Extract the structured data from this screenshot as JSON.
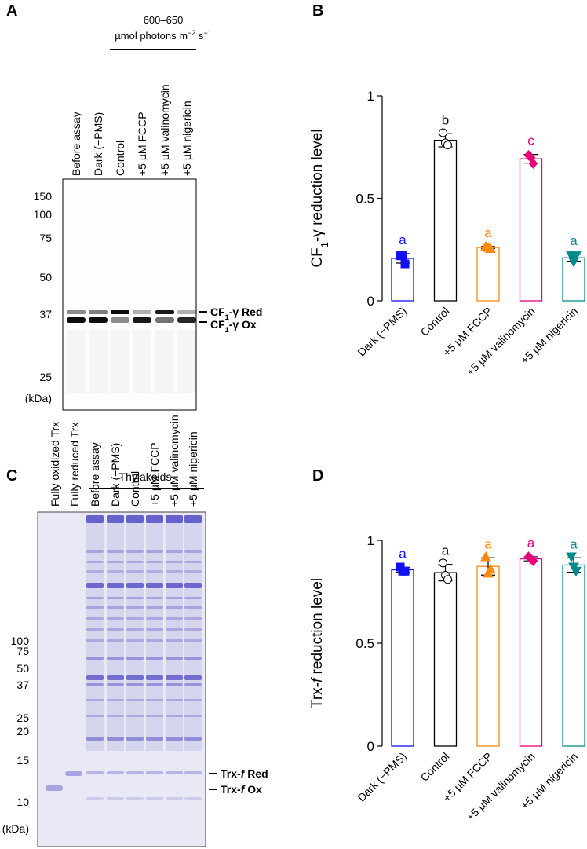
{
  "panel_labels": [
    "A",
    "B",
    "C",
    "D"
  ],
  "gels": [
    {
      "header": [
        "600–650",
        "µmol photons m",
        "−2",
        " s",
        "−1"
      ],
      "lanes": [
        "Before assay",
        "Dark (−PMS)",
        "Control",
        "+5 µM FCCP",
        "+5 µM valinomycin",
        "+5 µM nigericin"
      ],
      "markers": [
        "150",
        "100",
        "75",
        "50",
        "37",
        "25",
        "(kDa)"
      ],
      "bands": [
        [
          "CF",
          "1",
          "-γ Red"
        ],
        [
          "CF",
          "1",
          "-γ Ox"
        ]
      ]
    },
    {
      "header": [
        "Thylakoids"
      ],
      "lanes": [
        "Fully oxidized Trx",
        "Fully reduced Trx",
        "Before assay",
        "Dark (−PMS)",
        "Control",
        "+5 µM FCCP",
        "+5 µM valinomycin",
        "+5 µM nigericin"
      ],
      "markers": [
        "100",
        "75",
        "50",
        "37",
        "25",
        "20",
        "15",
        "10",
        "(kDa)"
      ],
      "bands": [
        [
          "Trx-",
          "f",
          " Red"
        ],
        [
          "Trx-",
          "f",
          " Ox"
        ]
      ]
    }
  ],
  "chart_data": [
    {
      "type": "bar",
      "ylabel": [
        "CF",
        "1",
        "-γ reduction level"
      ],
      "categories": [
        "Dark (−PMS)",
        "Control",
        "+5 µM FCCP",
        "+5 µM valinomycin",
        "+5 µM nigericin"
      ],
      "values": [
        0.207,
        0.783,
        0.26,
        0.693,
        0.21
      ],
      "errors": [
        0.023,
        0.032,
        0.005,
        0.021,
        0.017
      ],
      "points": [
        [
          0.22,
          0.22,
          0.18
        ],
        [
          0.82,
          0.77,
          0.76
        ],
        [
          0.265,
          0.26,
          0.255
        ],
        [
          0.71,
          0.7,
          0.67
        ],
        [
          0.22,
          0.19,
          0.22
        ]
      ],
      "letters": [
        "a",
        "b",
        "a",
        "c",
        "a"
      ],
      "colors": [
        "#1010f0",
        "#000000",
        "#ff8a10",
        "#e8007a",
        "#008b8b"
      ],
      "markers": [
        "square",
        "circle",
        "triangle-up",
        "diamond",
        "triangle-down"
      ],
      "ylim": [
        0,
        1
      ],
      "yticks": [
        0,
        0.5,
        1
      ]
    },
    {
      "type": "bar",
      "ylabel": [
        "Trx-",
        "f",
        " reduction level"
      ],
      "categories": [
        "Dark (−PMS)",
        "Control",
        "+5 µM FCCP",
        "+5 µM valinomycin",
        "+5 µM nigericin"
      ],
      "values": [
        0.857,
        0.843,
        0.873,
        0.91,
        0.88
      ],
      "errors": [
        0.012,
        0.04,
        0.042,
        0.01,
        0.035
      ],
      "points": [
        [
          0.87,
          0.85,
          0.85
        ],
        [
          0.89,
          0.83,
          0.81
        ],
        [
          0.92,
          0.84,
          0.86
        ],
        [
          0.92,
          0.91,
          0.9
        ],
        [
          0.92,
          0.87,
          0.85
        ]
      ],
      "letters": [
        "a",
        "a",
        "a",
        "a",
        "a"
      ],
      "colors": [
        "#1010f0",
        "#000000",
        "#ff8a10",
        "#e8007a",
        "#008b8b"
      ],
      "markers": [
        "square",
        "circle",
        "triangle-up",
        "diamond",
        "triangle-down"
      ],
      "ylim": [
        0,
        1
      ],
      "yticks": [
        0,
        0.5,
        1
      ]
    }
  ]
}
